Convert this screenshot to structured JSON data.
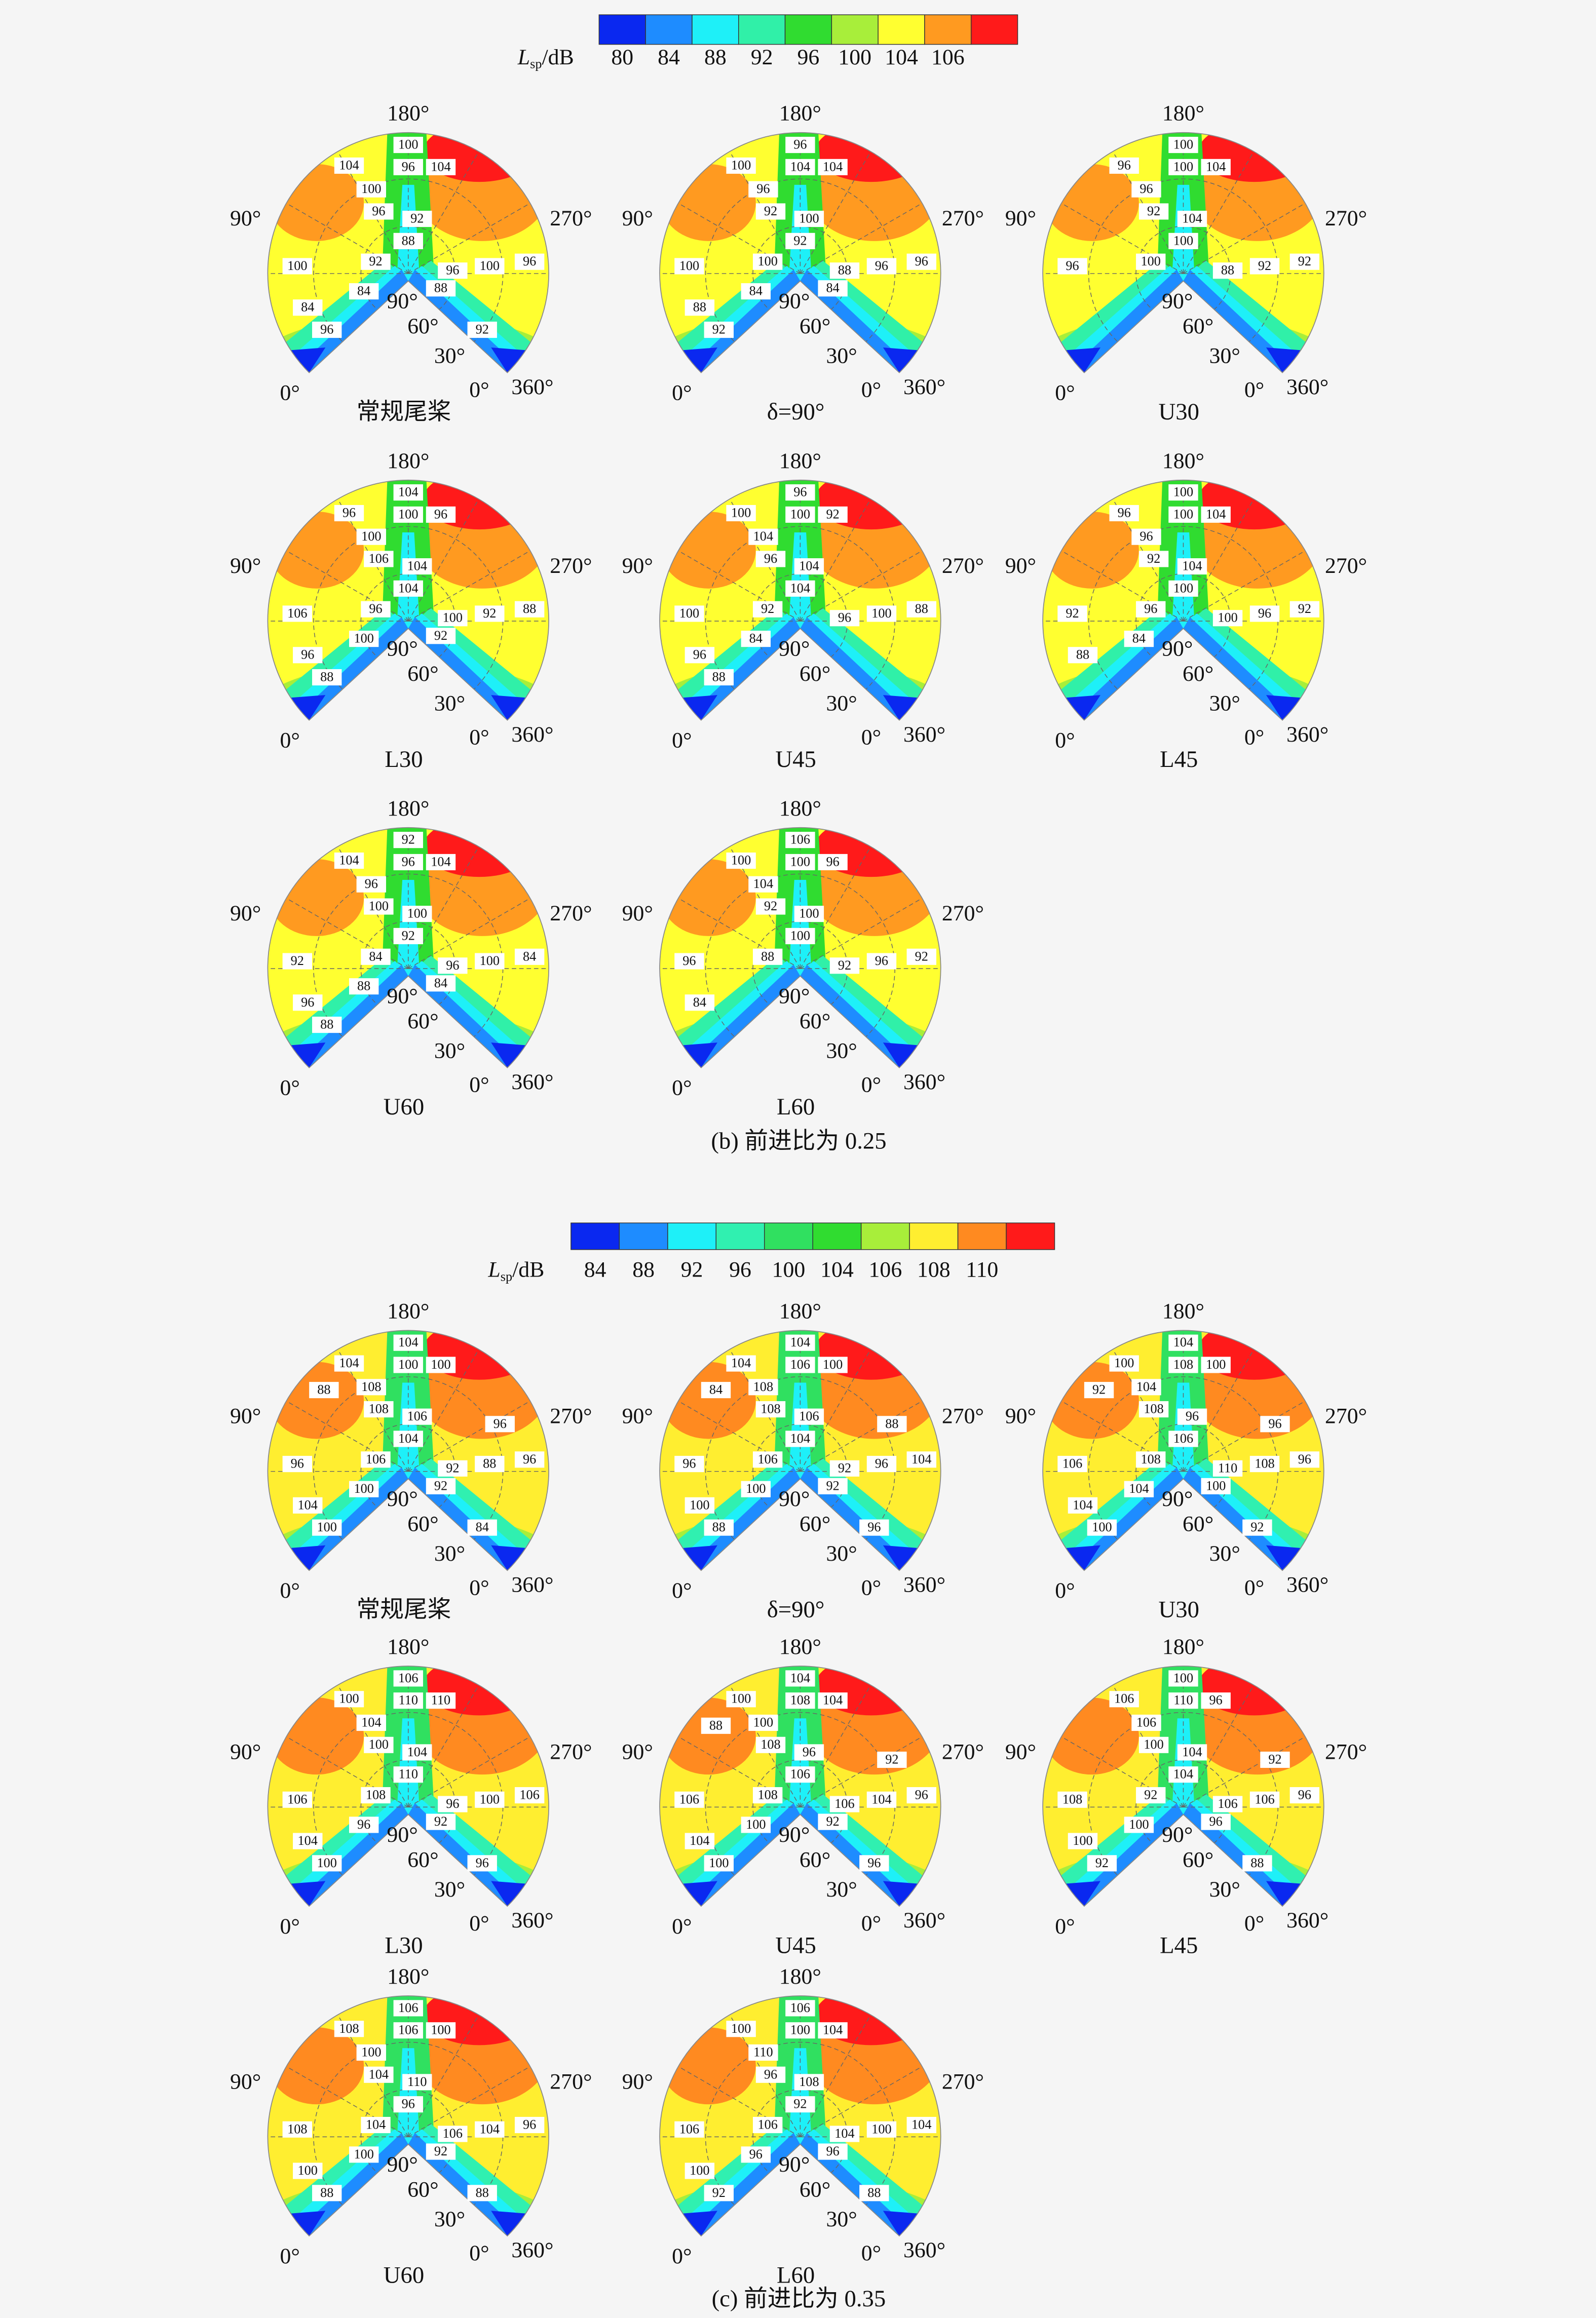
{
  "figures": [
    {
      "colorbar": {
        "title": {
          "symbol": "L",
          "subscript": "sp",
          "unit": "/dB"
        },
        "levels": [
          80,
          84,
          88,
          92,
          96,
          100,
          104,
          106
        ],
        "colors": [
          "#0a28f0",
          "#1e8cff",
          "#1ef0f8",
          "#30f0a8",
          "#30dc30",
          "#a8ee3a",
          "#ffff30",
          "#ff9a20",
          "#ff1a1a"
        ]
      },
      "panels": [
        {
          "name": "常规尾桨",
          "contour_labels": [
            104,
            100,
            96,
            104,
            100,
            96,
            92,
            100,
            92,
            88,
            96,
            100,
            96,
            84,
            84,
            96,
            88,
            92
          ]
        },
        {
          "name": "δ=90°",
          "contour_labels": [
            100,
            96,
            104,
            104,
            96,
            92,
            100,
            100,
            100,
            92,
            88,
            96,
            96,
            88,
            84,
            92,
            84
          ]
        },
        {
          "name": "U30",
          "contour_labels": [
            96,
            100,
            100,
            104,
            96,
            92,
            104,
            96,
            100,
            100,
            88,
            92,
            92
          ]
        },
        {
          "name": "L30",
          "contour_labels": [
            96,
            104,
            100,
            96,
            100,
            106,
            104,
            106,
            96,
            104,
            100,
            92,
            88,
            96,
            100,
            88,
            92
          ]
        },
        {
          "name": "U45",
          "contour_labels": [
            100,
            96,
            100,
            92,
            104,
            96,
            104,
            100,
            92,
            104,
            96,
            100,
            88,
            96,
            84,
            88
          ]
        },
        {
          "name": "L45",
          "contour_labels": [
            96,
            100,
            100,
            104,
            96,
            92,
            104,
            92,
            96,
            100,
            100,
            96,
            92,
            88,
            84
          ]
        },
        {
          "name": "U60",
          "contour_labels": [
            104,
            92,
            96,
            104,
            96,
            100,
            100,
            92,
            84,
            92,
            96,
            100,
            84,
            96,
            88,
            88,
            84
          ]
        },
        {
          "name": "L60",
          "contour_labels": [
            100,
            106,
            100,
            96,
            104,
            92,
            100,
            96,
            88,
            100,
            92,
            96,
            92,
            84
          ]
        }
      ],
      "caption": "(b) 前进比为 0.25"
    },
    {
      "colorbar": {
        "title": {
          "symbol": "L",
          "subscript": "sp",
          "unit": "/dB"
        },
        "levels": [
          84,
          88,
          92,
          96,
          100,
          104,
          106,
          108,
          110
        ],
        "colors": [
          "#0a28f0",
          "#1e8cff",
          "#1ef0f8",
          "#30f0b0",
          "#30e060",
          "#30dc30",
          "#a8ee3a",
          "#ffee30",
          "#ff8a20",
          "#ff1a1a"
        ]
      },
      "panels": [
        {
          "name": "常规尾桨",
          "contour_labels": [
            104,
            104,
            100,
            100,
            108,
            108,
            106,
            96,
            106,
            104,
            92,
            88,
            96,
            104,
            100,
            100,
            92,
            84,
            96,
            88
          ]
        },
        {
          "name": "δ=90°",
          "contour_labels": [
            104,
            104,
            106,
            100,
            108,
            108,
            106,
            96,
            106,
            104,
            92,
            96,
            104,
            100,
            100,
            88,
            92,
            96,
            88,
            84
          ]
        },
        {
          "name": "U30",
          "contour_labels": [
            100,
            104,
            108,
            100,
            104,
            108,
            96,
            106,
            108,
            106,
            110,
            108,
            96,
            104,
            104,
            100,
            100,
            92,
            96,
            92
          ]
        },
        {
          "name": "L30",
          "contour_labels": [
            100,
            106,
            110,
            110,
            104,
            100,
            104,
            106,
            108,
            110,
            96,
            100,
            106,
            104,
            96,
            100,
            92,
            96
          ]
        },
        {
          "name": "U45",
          "contour_labels": [
            100,
            104,
            108,
            104,
            100,
            108,
            96,
            106,
            108,
            106,
            106,
            104,
            96,
            104,
            100,
            100,
            92,
            96,
            92,
            88
          ]
        },
        {
          "name": "L45",
          "contour_labels": [
            106,
            100,
            110,
            96,
            106,
            100,
            104,
            108,
            92,
            104,
            106,
            106,
            96,
            100,
            100,
            92,
            96,
            88,
            92
          ]
        },
        {
          "name": "U60",
          "contour_labels": [
            108,
            106,
            106,
            100,
            100,
            104,
            110,
            108,
            104,
            96,
            106,
            104,
            96,
            100,
            100,
            88,
            92,
            88
          ]
        },
        {
          "name": "L60",
          "contour_labels": [
            100,
            106,
            100,
            104,
            110,
            96,
            108,
            106,
            106,
            92,
            104,
            100,
            104,
            100,
            96,
            92,
            96,
            88
          ]
        }
      ],
      "caption": "(c) 前进比为 0.35"
    }
  ],
  "angle_labels": {
    "top": "180°",
    "left": "90°",
    "right": "270°",
    "bottom_left": "0°",
    "inner_90": "90°",
    "inner_60": "60°",
    "inner_30": "30°",
    "inner_0": "0°",
    "bottom_right": "360°"
  }
}
